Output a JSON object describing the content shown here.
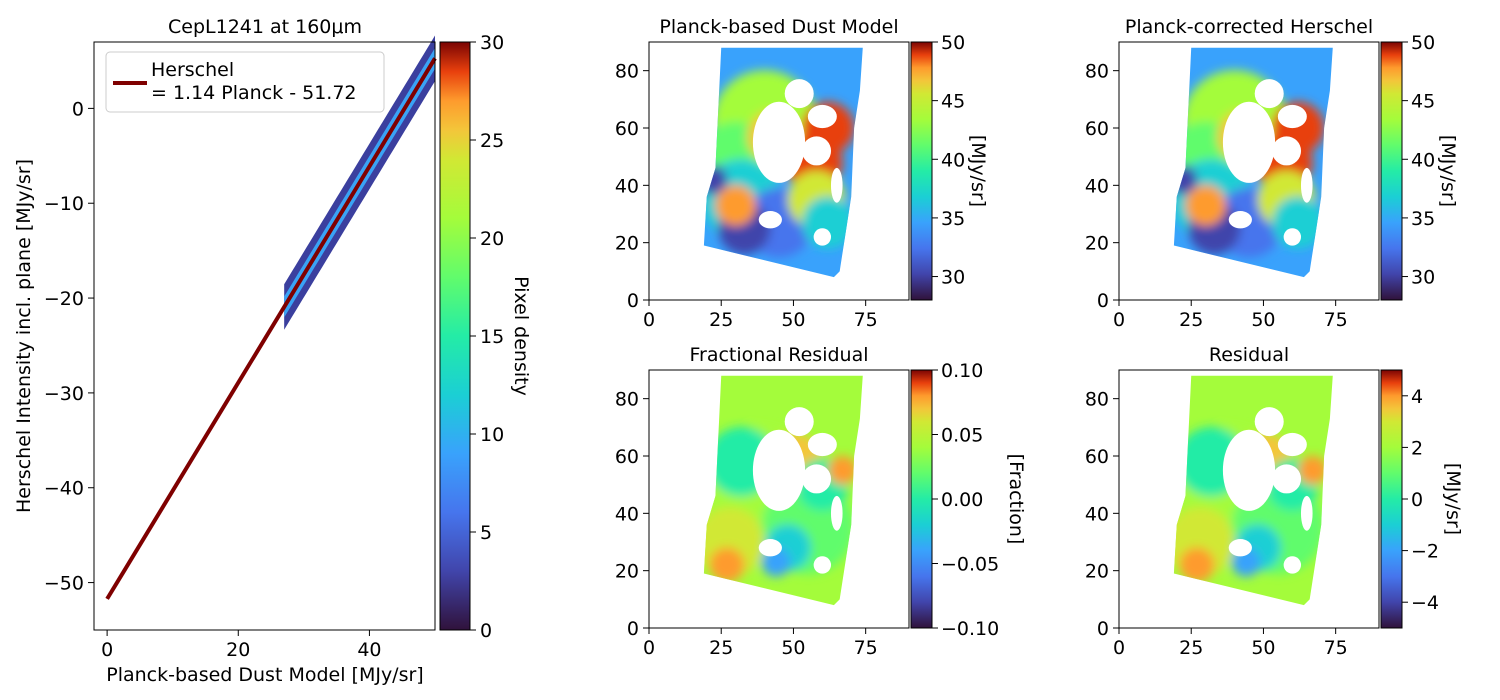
{
  "panels": {
    "scatter": {
      "title": "CepL1241 at 160μm",
      "xlabel": "Planck-based Dust Model [MJy/sr]",
      "ylabel": "Herschel Intensity incl. plane [MJy/sr]",
      "xticks": [
        0,
        20,
        40
      ],
      "yticks": [
        0,
        -10,
        -20,
        -30,
        -40,
        -50
      ],
      "legend_line1": "Herschel",
      "legend_line2": "= 1.14 Planck - 51.72",
      "line_color": "#7f0000",
      "colorbar": {
        "label": "Pixel density",
        "ticks": [
          0,
          5,
          10,
          15,
          20,
          25,
          30
        ]
      }
    },
    "map_dust": {
      "title": "Planck-based Dust Model",
      "colorbar": {
        "label": "[MJy/sr]",
        "ticks": [
          30,
          35,
          40,
          45,
          50
        ]
      }
    },
    "map_corrected": {
      "title": "Planck-corrected Herschel",
      "colorbar": {
        "label": "[MJy/sr]",
        "ticks": [
          30,
          35,
          40,
          45,
          50
        ]
      }
    },
    "map_frac": {
      "title": "Fractional Residual",
      "colorbar": {
        "label": "[Fraction]",
        "ticks": [
          "0.10",
          "0.05",
          "0.00",
          "−0.05",
          "−0.10"
        ]
      }
    },
    "map_resid": {
      "title": "Residual",
      "colorbar": {
        "label": "[MJy/sr]",
        "ticks": [
          4,
          2,
          0,
          -2,
          -4
        ]
      }
    },
    "map_axes": {
      "xticks": [
        0,
        25,
        50,
        75
      ],
      "yticks": [
        0,
        20,
        40,
        60,
        80
      ]
    }
  },
  "chart_data": [
    {
      "type": "scatter",
      "title": "CepL1241 at 160μm",
      "xlabel": "Planck-based Dust Model [MJy/sr]",
      "ylabel": "Herschel Intensity incl. plane [MJy/sr]",
      "xlim": [
        -2,
        50
      ],
      "ylim": [
        -55,
        7
      ],
      "fit_line": {
        "slope": 1.14,
        "intercept": -51.72,
        "x_range": [
          0,
          50
        ],
        "label": "Herschel\n= 1.14 Planck - 51.72"
      },
      "density_band": {
        "x_range": [
          27,
          50
        ],
        "colormap": "turbo",
        "clim": [
          0,
          30
        ]
      },
      "legend_position": "top-left"
    },
    {
      "type": "heatmap",
      "title": "Planck-based Dust Model",
      "xlim": [
        0,
        90
      ],
      "ylim": [
        0,
        90
      ],
      "colormap": "turbo",
      "clim": [
        28,
        50
      ],
      "colorbar_label": "[MJy/sr]"
    },
    {
      "type": "heatmap",
      "title": "Planck-corrected Herschel",
      "xlim": [
        0,
        90
      ],
      "ylim": [
        0,
        90
      ],
      "colormap": "turbo",
      "clim": [
        28,
        50
      ],
      "colorbar_label": "[MJy/sr]"
    },
    {
      "type": "heatmap",
      "title": "Fractional Residual",
      "xlim": [
        0,
        90
      ],
      "ylim": [
        0,
        90
      ],
      "colormap": "turbo",
      "clim": [
        -0.1,
        0.1
      ],
      "colorbar_label": "[Fraction]"
    },
    {
      "type": "heatmap",
      "title": "Residual",
      "xlim": [
        0,
        90
      ],
      "ylim": [
        0,
        90
      ],
      "colormap": "turbo",
      "clim": [
        -5,
        5
      ],
      "colorbar_label": "[MJy/sr]"
    }
  ]
}
